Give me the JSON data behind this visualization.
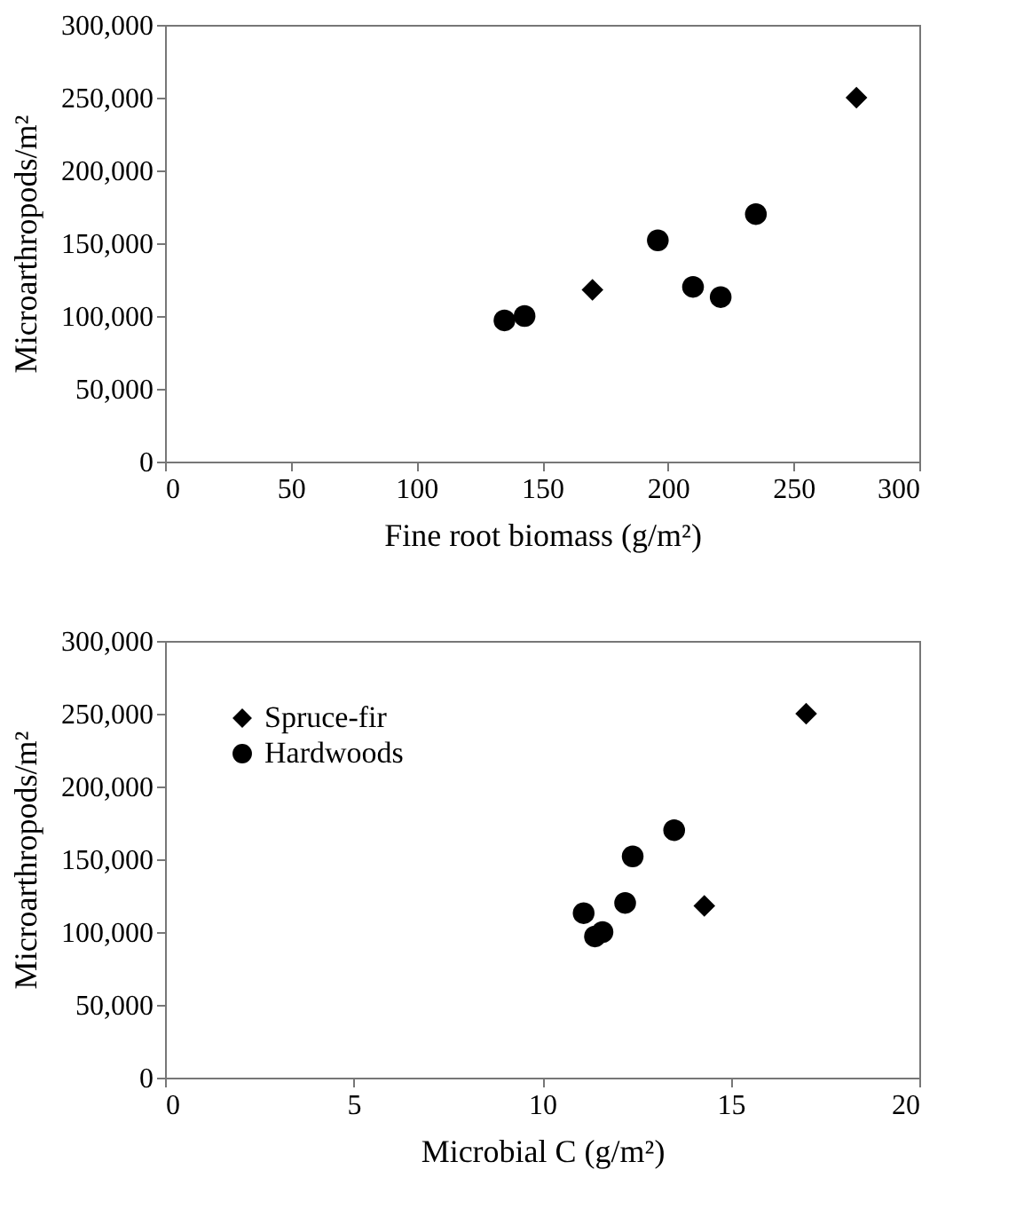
{
  "chart_data": [
    {
      "type": "scatter",
      "xlabel": "Fine root biomass (g/m²)",
      "ylabel": "Microarthropods/m²",
      "xlim": [
        0,
        300
      ],
      "xticks": [
        0,
        50,
        100,
        150,
        200,
        250,
        300
      ],
      "ylim": [
        0,
        300000
      ],
      "yticks": [
        0,
        {
          "value": 50000,
          "label": "50,000"
        },
        {
          "value": 100000,
          "label": "100,000"
        },
        {
          "value": 150000,
          "label": "150,000"
        },
        {
          "value": 200000,
          "label": "200,000"
        },
        {
          "value": 250000,
          "label": "250,000"
        },
        {
          "value": 300000,
          "label": "300,000"
        }
      ],
      "grid": false,
      "series": [
        {
          "color": "#000000",
          "marker": "diamond",
          "x": [
            170,
            275
          ],
          "values": [
            118000,
            250000
          ]
        },
        {
          "color": "#000000",
          "marker": "circle",
          "x": [
            135,
            143,
            196,
            210,
            221,
            235
          ],
          "values": [
            97000,
            100000,
            152000,
            120000,
            113000,
            170000
          ]
        }
      ]
    },
    {
      "type": "scatter",
      "xlabel": "Microbial C (g/m²)",
      "ylabel": "Microarthropods/m²",
      "xlim": [
        0,
        20
      ],
      "xticks": [
        0,
        5,
        10,
        15,
        20
      ],
      "ylim": [
        0,
        300000
      ],
      "yticks": [
        0,
        {
          "value": 50000,
          "label": "50,000"
        },
        {
          "value": 100000,
          "label": "100,000"
        },
        {
          "value": 150000,
          "label": "150,000"
        },
        {
          "value": 200000,
          "label": "200,000"
        },
        {
          "value": 250000,
          "label": "250,000"
        },
        {
          "value": 300000,
          "label": "300,000"
        }
      ],
      "grid": false,
      "legend": "top left",
      "series": [
        {
          "name": "Spruce-fir",
          "color": "#000000",
          "marker": "diamond",
          "x": [
            14.3,
            17.0
          ],
          "values": [
            118000,
            250000
          ]
        },
        {
          "name": "Hardwoods",
          "color": "#000000",
          "marker": "circle",
          "x": [
            11.4,
            11.6,
            12.4,
            12.2,
            11.1,
            13.5
          ],
          "values": [
            97000,
            100000,
            152000,
            120000,
            113000,
            170000
          ]
        }
      ]
    }
  ]
}
